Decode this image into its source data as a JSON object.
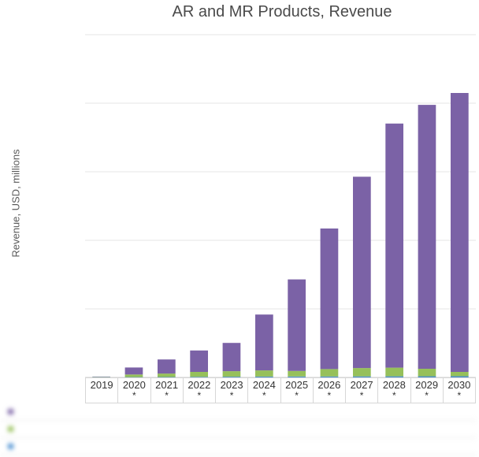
{
  "chart_data": {
    "type": "bar",
    "stacked": true,
    "title": "AR and MR Products, Revenue",
    "xlabel": "",
    "ylabel": "Revenue, USD, millions",
    "categories": [
      "2019",
      "2020*",
      "2021*",
      "2022*",
      "2023*",
      "2024*",
      "2025*",
      "2026*",
      "2027*",
      "2028*",
      "2029*",
      "2030*"
    ],
    "category_labels": [
      {
        "year": "2019",
        "mark": ""
      },
      {
        "year": "2020",
        "mark": "*"
      },
      {
        "year": "2021",
        "mark": "*"
      },
      {
        "year": "2022",
        "mark": "*"
      },
      {
        "year": "2023",
        "mark": "*"
      },
      {
        "year": "2024",
        "mark": "*"
      },
      {
        "year": "2025",
        "mark": "*"
      },
      {
        "year": "2026",
        "mark": "*"
      },
      {
        "year": "2027",
        "mark": "*"
      },
      {
        "year": "2028",
        "mark": "*"
      },
      {
        "year": "2029",
        "mark": "*"
      },
      {
        "year": "2030",
        "mark": "*"
      }
    ],
    "series": [
      {
        "color": "#7b62a6",
        "values": [
          5,
          102,
          206,
          313,
          413,
          815,
          1336,
          2050,
          2791,
          3561,
          3849,
          4069
        ]
      },
      {
        "color": "#96c05a",
        "values": [
          5,
          38,
          50,
          72,
          81,
          90,
          81,
          108,
          122,
          126,
          110,
          63
        ]
      },
      {
        "color": "#4a8fd1",
        "values": [
          3,
          5,
          6,
          8,
          10,
          12,
          13,
          14,
          15,
          16,
          17,
          18
        ]
      }
    ],
    "ylim": [
      0,
      5000
    ],
    "gridlines": [
      0,
      1000,
      2000,
      3000,
      4000,
      5000
    ],
    "y_tick_labels_visible": false,
    "grid": true,
    "legend": "table-below",
    "legend_blurred": true
  },
  "legend_rows": [
    {
      "series_index": 0,
      "name": "",
      "values": [
        "",
        "",
        "",
        "",
        "",
        "",
        "",
        "",
        "",
        "",
        "",
        ""
      ]
    },
    {
      "series_index": 1,
      "name": "",
      "values": [
        "",
        "",
        "",
        "",
        "",
        "",
        "",
        "",
        "",
        "",
        "",
        ""
      ]
    },
    {
      "series_index": 2,
      "name": "",
      "values": [
        "",
        "",
        "",
        "",
        "",
        "",
        "",
        "",
        "",
        "",
        "",
        ""
      ]
    }
  ]
}
